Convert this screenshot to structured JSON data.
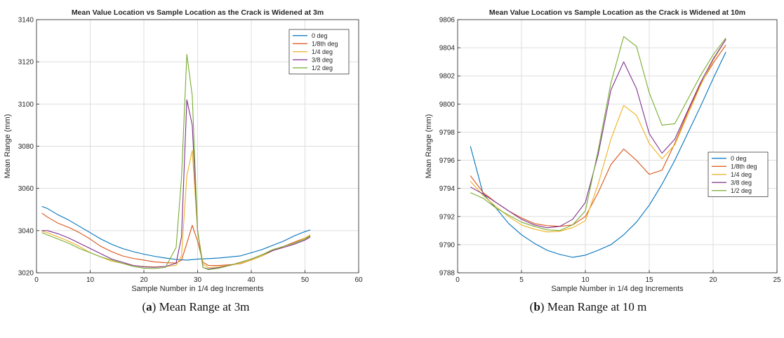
{
  "chart_data": [
    {
      "type": "line",
      "title": "Mean Value Location vs Sample Location as the Crack is Widened at 3m",
      "xlabel": "Sample Number in 1/4 deg Increments",
      "ylabel": "Mean Range (mm)",
      "xlim": [
        0,
        60
      ],
      "ylim": [
        3020,
        3140
      ],
      "xticks": [
        0,
        10,
        20,
        30,
        40,
        50,
        60
      ],
      "yticks": [
        3020,
        3040,
        3060,
        3080,
        3100,
        3120,
        3140
      ],
      "grid": true,
      "legend_position": "top-right",
      "caption_letter": "a",
      "caption_text": " Mean Range at 3m",
      "series": [
        {
          "name": "0 deg",
          "color": "#0072BD",
          "x": [
            1,
            2,
            4,
            6,
            8,
            10,
            12,
            14,
            16,
            18,
            20,
            22,
            24,
            26,
            28,
            30,
            32,
            34,
            36,
            38,
            40,
            42,
            44,
            46,
            48,
            50,
            51
          ],
          "y": [
            3051.5,
            3050.5,
            3047.5,
            3045,
            3042,
            3039,
            3036,
            3033.5,
            3031.5,
            3030,
            3028.8,
            3027.8,
            3027,
            3026.3,
            3026,
            3026.5,
            3026.7,
            3027,
            3027.5,
            3028,
            3029.5,
            3031,
            3033,
            3035,
            3037.5,
            3039.5,
            3040.3
          ]
        },
        {
          "name": "1/8th deg",
          "color": "#D95319",
          "x": [
            1,
            2,
            4,
            6,
            8,
            10,
            12,
            14,
            16,
            18,
            20,
            22,
            24,
            26,
            27,
            28,
            29,
            30,
            31,
            32,
            34,
            36,
            38,
            40,
            42,
            44,
            46,
            48,
            50,
            51
          ],
          "y": [
            3048.3,
            3046.5,
            3043.5,
            3041.5,
            3039,
            3036,
            3032.5,
            3030,
            3028,
            3026.8,
            3026,
            3025.2,
            3024.8,
            3024.6,
            3026,
            3034,
            3042.5,
            3035,
            3025,
            3023.5,
            3023.5,
            3023.8,
            3024.3,
            3026,
            3028,
            3030.5,
            3032.5,
            3034.5,
            3036.5,
            3037.5
          ]
        },
        {
          "name": "1/4 deg",
          "color": "#EDB120",
          "x": [
            1,
            2,
            4,
            6,
            8,
            10,
            12,
            14,
            16,
            18,
            20,
            22,
            24,
            26,
            27,
            28,
            29,
            30,
            31,
            32,
            34,
            36,
            38,
            40,
            42,
            44,
            46,
            48,
            50,
            51
          ],
          "y": [
            3039.8,
            3039,
            3037,
            3035,
            3032.5,
            3029.5,
            3027.5,
            3025.5,
            3024.5,
            3023.5,
            3023,
            3022.8,
            3023,
            3023.5,
            3028,
            3066,
            3078,
            3040,
            3024,
            3022.5,
            3023,
            3023.5,
            3024.5,
            3026,
            3028,
            3030.5,
            3032.5,
            3034,
            3036.5,
            3038
          ]
        },
        {
          "name": "3/8 deg",
          "color": "#7E2F8E",
          "x": [
            1,
            2,
            4,
            6,
            8,
            10,
            12,
            14,
            16,
            18,
            20,
            22,
            24,
            26,
            27,
            28,
            29,
            30,
            31,
            32,
            34,
            36,
            38,
            40,
            42,
            44,
            46,
            48,
            50,
            51
          ],
          "y": [
            3040,
            3040,
            3038.5,
            3036.5,
            3034,
            3031.5,
            3029,
            3026.5,
            3025,
            3023.5,
            3022.8,
            3022.6,
            3023,
            3024.5,
            3037,
            3102,
            3090,
            3040,
            3022.5,
            3021.8,
            3022.5,
            3023.5,
            3025,
            3026.5,
            3028.5,
            3030.5,
            3032,
            3033.5,
            3035.5,
            3037
          ]
        },
        {
          "name": "1/2 deg",
          "color": "#77AC30",
          "x": [
            1,
            2,
            4,
            6,
            8,
            10,
            12,
            14,
            16,
            18,
            20,
            22,
            24,
            26,
            27,
            28,
            29,
            30,
            31,
            32,
            34,
            36,
            38,
            40,
            42,
            44,
            46,
            48,
            50,
            51
          ],
          "y": [
            3039,
            3038,
            3036,
            3034,
            3031.5,
            3029.5,
            3027.5,
            3026,
            3024.5,
            3023,
            3022.2,
            3022,
            3022.5,
            3032,
            3065,
            3123.5,
            3104,
            3040,
            3022.5,
            3021.5,
            3022.2,
            3023.5,
            3025,
            3026.5,
            3028.5,
            3031,
            3032.5,
            3034,
            3036,
            3037.5
          ]
        }
      ]
    },
    {
      "type": "line",
      "title": "Mean Value Location vs Sample Location as the Crack is Widened at 10m",
      "xlabel": "Sample Number in 1/4 deg Increments",
      "ylabel": "Mean Range (mm)",
      "xlim": [
        0,
        25
      ],
      "ylim": [
        9788,
        9806
      ],
      "xticks": [
        0,
        5,
        10,
        15,
        20,
        25
      ],
      "yticks": [
        9788,
        9790,
        9792,
        9794,
        9796,
        9798,
        9800,
        9802,
        9804,
        9806
      ],
      "grid": true,
      "legend_position": "right",
      "caption_letter": "b",
      "caption_text": " Mean Range at 10 m",
      "series": [
        {
          "name": "0 deg",
          "color": "#0072BD",
          "x": [
            1,
            2,
            3,
            4,
            5,
            6,
            7,
            8,
            9,
            10,
            11,
            12,
            13,
            14,
            15,
            16,
            17,
            18,
            19,
            20,
            21
          ],
          "y": [
            9797,
            9793.6,
            9792.6,
            9791.5,
            9790.7,
            9790.1,
            9789.6,
            9789.3,
            9789.1,
            9789.25,
            9789.6,
            9790,
            9790.7,
            9791.6,
            9792.8,
            9794.3,
            9796,
            9797.9,
            9799.8,
            9801.8,
            9803.7
          ]
        },
        {
          "name": "1/8th deg",
          "color": "#D95319",
          "x": [
            1,
            2,
            3,
            4,
            5,
            6,
            7,
            8,
            9,
            10,
            11,
            12,
            13,
            14,
            15,
            16,
            17,
            18,
            19,
            20,
            21
          ],
          "y": [
            9794.9,
            9793.7,
            9793,
            9792.4,
            9791.9,
            9791.5,
            9791.35,
            9791.3,
            9791.4,
            9792,
            9793.7,
            9795.7,
            9796.8,
            9796,
            9795,
            9795.3,
            9797.2,
            9799.4,
            9801.4,
            9802.9,
            9804.2
          ]
        },
        {
          "name": "1/4 deg",
          "color": "#EDB120",
          "x": [
            1,
            2,
            3,
            4,
            5,
            6,
            7,
            8,
            9,
            10,
            11,
            12,
            13,
            14,
            15,
            16,
            17,
            18,
            19,
            20,
            21
          ],
          "y": [
            9794.5,
            9793.5,
            9792.7,
            9792,
            9791.4,
            9791.1,
            9790.9,
            9790.95,
            9791.2,
            9791.7,
            9794.3,
            9797.5,
            9799.9,
            9799.2,
            9797.2,
            9796.1,
            9797.1,
            9799.2,
            9801.3,
            9803.1,
            9804.6
          ]
        },
        {
          "name": "3/8 deg",
          "color": "#7E2F8E",
          "x": [
            1,
            2,
            3,
            4,
            5,
            6,
            7,
            8,
            9,
            10,
            11,
            12,
            13,
            14,
            15,
            16,
            17,
            18,
            19,
            20,
            21
          ],
          "y": [
            9794.1,
            9793.6,
            9793,
            9792.4,
            9791.8,
            9791.4,
            9791.2,
            9791.3,
            9791.8,
            9793,
            9796.4,
            9801,
            9803,
            9801.1,
            9797.9,
            9796.5,
            9797.5,
            9799.5,
            9801.5,
            9803.2,
            9804.6
          ]
        },
        {
          "name": "1/2 deg",
          "color": "#77AC30",
          "x": [
            1,
            2,
            3,
            4,
            5,
            6,
            7,
            8,
            9,
            10,
            11,
            12,
            13,
            14,
            15,
            16,
            17,
            18,
            19,
            20,
            21
          ],
          "y": [
            9793.7,
            9793.3,
            9792.6,
            9792.1,
            9791.6,
            9791.3,
            9791.05,
            9791,
            9791.4,
            9792.4,
            9796.7,
            9801.5,
            9804.8,
            9804.1,
            9800.8,
            9798.5,
            9798.6,
            9800.3,
            9802,
            9803.5,
            9804.7
          ]
        }
      ]
    }
  ]
}
